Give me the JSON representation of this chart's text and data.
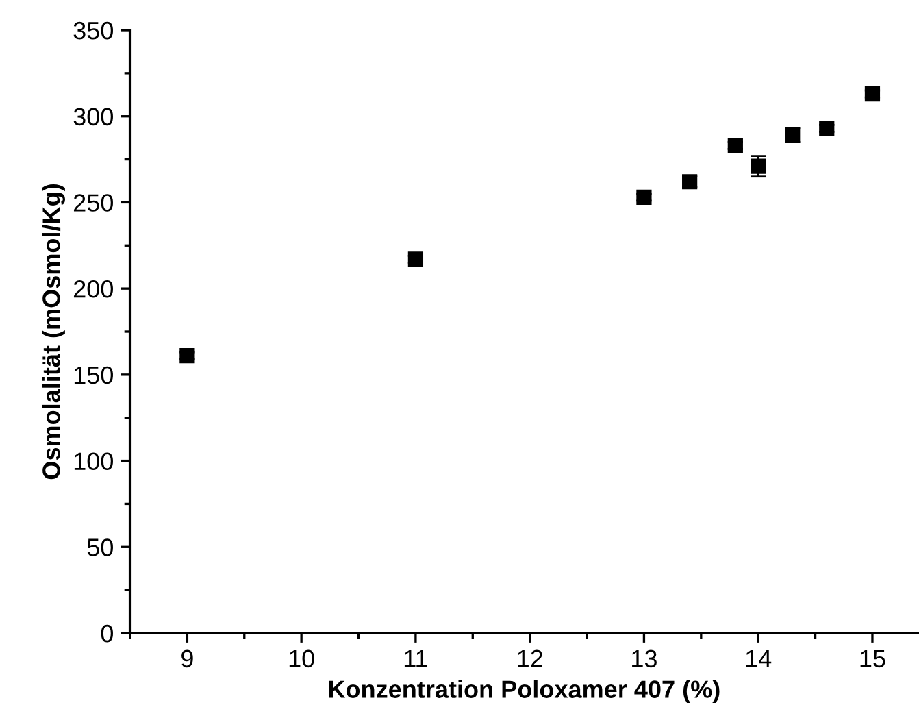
{
  "chart_data": {
    "type": "scatter",
    "xlabel": "Konzentration Poloxamer 407 (%)",
    "ylabel": "Osmolalität (mOsmol/Kg)",
    "x": [
      9,
      11,
      13,
      13.4,
      13.8,
      14,
      14.3,
      14.6,
      15
    ],
    "values": [
      161,
      217,
      253,
      262,
      283,
      271,
      289,
      293,
      313
    ],
    "errors": [
      2,
      2,
      2,
      3,
      2,
      6,
      4,
      2,
      2
    ],
    "color": "#000000",
    "marker": "square",
    "xlim": [
      8.5,
      15.4
    ],
    "xticks": [
      9,
      10,
      11,
      12,
      13,
      14,
      15
    ],
    "ylim": [
      0,
      350
    ],
    "yticks": [
      0,
      50,
      100,
      150,
      200,
      250,
      300,
      350
    ],
    "grid": false
  }
}
